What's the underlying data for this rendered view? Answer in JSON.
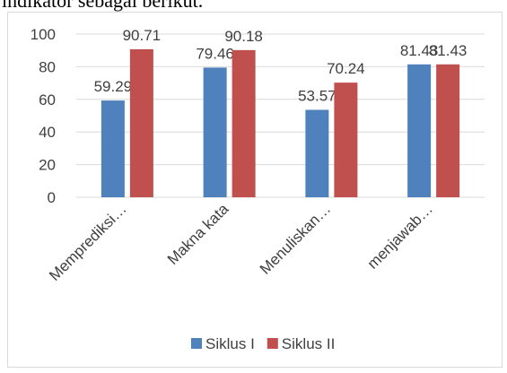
{
  "document_text": "indikator sebagai berikut.",
  "chart_data": {
    "type": "bar",
    "categories": [
      "Memprediksi…",
      "Makna kata",
      "Menuliskan…",
      "menjawab…"
    ],
    "series": [
      {
        "name": "Siklus I",
        "color": "#4f81bd",
        "values": [
          59.29,
          79.46,
          53.57,
          81.43
        ]
      },
      {
        "name": "Siklus II",
        "color": "#c0504d",
        "values": [
          90.71,
          90.18,
          70.24,
          81.43
        ]
      }
    ],
    "ylim": [
      0,
      100
    ],
    "yticks": [
      0,
      20,
      40,
      60,
      80,
      100
    ],
    "grid": true,
    "legend": "bottom"
  }
}
